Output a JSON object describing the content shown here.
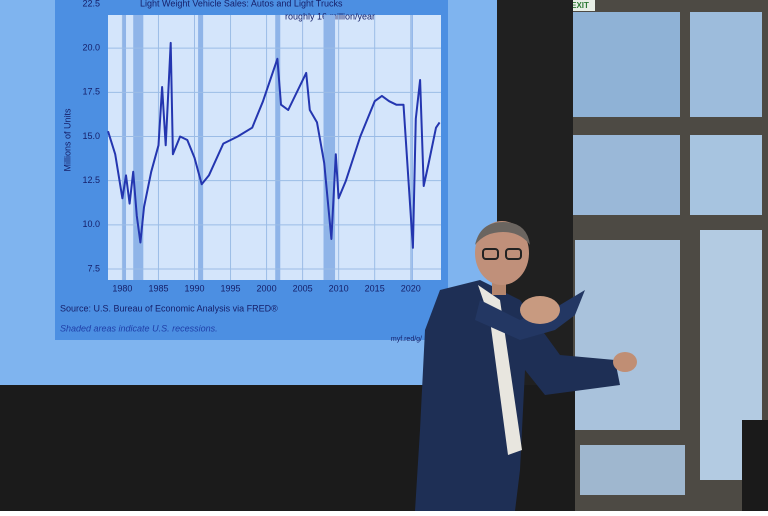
{
  "chart_data": {
    "type": "line",
    "title": "Light Weight Vehicle Sales: Autos and Light Trucks",
    "annotation": "roughly 16 million/year",
    "y_label": "Millions of Units",
    "source": "Source: U.S. Bureau of Economic Analysis via FRED®",
    "note": "Shaded areas indicate U.S. recessions.",
    "url": "myf.red/g/",
    "color": "#2436b0",
    "x": [
      1978,
      1979,
      1980,
      1980.5,
      1981,
      1981.5,
      1982,
      1982.5,
      1983,
      1984,
      1985,
      1985.5,
      1986,
      1986.7,
      1987,
      1988,
      1989,
      1990,
      1991,
      1992,
      1994,
      1996,
      1998,
      1999.5,
      2001.5,
      2002,
      2003,
      2005.5,
      2006,
      2007,
      2008,
      2009,
      2009.6,
      2010,
      2011,
      2013,
      2015,
      2016,
      2017,
      2018,
      2019,
      2020.3,
      2020.7,
      2021.3,
      2021.8,
      2022.5,
      2023.5,
      2024
    ],
    "values": [
      15.3,
      14.0,
      11.5,
      12.8,
      11.2,
      13.0,
      10.5,
      9.0,
      11.0,
      13.0,
      14.5,
      17.8,
      14.5,
      20.3,
      14.0,
      15.0,
      14.8,
      13.8,
      12.3,
      12.8,
      14.6,
      15.0,
      15.5,
      17.0,
      19.4,
      16.8,
      16.5,
      18.6,
      16.5,
      15.8,
      13.5,
      9.2,
      14.0,
      11.5,
      12.5,
      15.0,
      17.0,
      17.3,
      17.0,
      16.8,
      16.8,
      8.7,
      16.0,
      18.2,
      12.2,
      13.5,
      15.5,
      15.8
    ],
    "recessions": [
      [
        1980,
        1980.5
      ],
      [
        1981.5,
        1982.9
      ],
      [
        1990.5,
        1991.2
      ],
      [
        2001.2,
        2001.9
      ],
      [
        2007.9,
        2009.5
      ],
      [
        2020.1,
        2020.3
      ]
    ],
    "xlim": [
      1978,
      2024.2
    ],
    "xticks": [
      1980,
      1985,
      1990,
      1995,
      2000,
      2005,
      2010,
      2015,
      2020
    ],
    "ylim": [
      7.5,
      22.5
    ],
    "yticks": [
      {
        "value": 7.5,
        "label": "7.5"
      },
      {
        "value": 10,
        "label": "10.0"
      },
      {
        "value": 12.5,
        "label": "12.5"
      },
      {
        "value": 15,
        "label": "15.0"
      },
      {
        "value": 17.5,
        "label": "17.5"
      },
      {
        "value": 20,
        "label": "20.0"
      },
      {
        "value": 22.5,
        "label": "22.5"
      }
    ],
    "grid": true
  },
  "scene": {
    "exit_sign": "EXIT"
  }
}
